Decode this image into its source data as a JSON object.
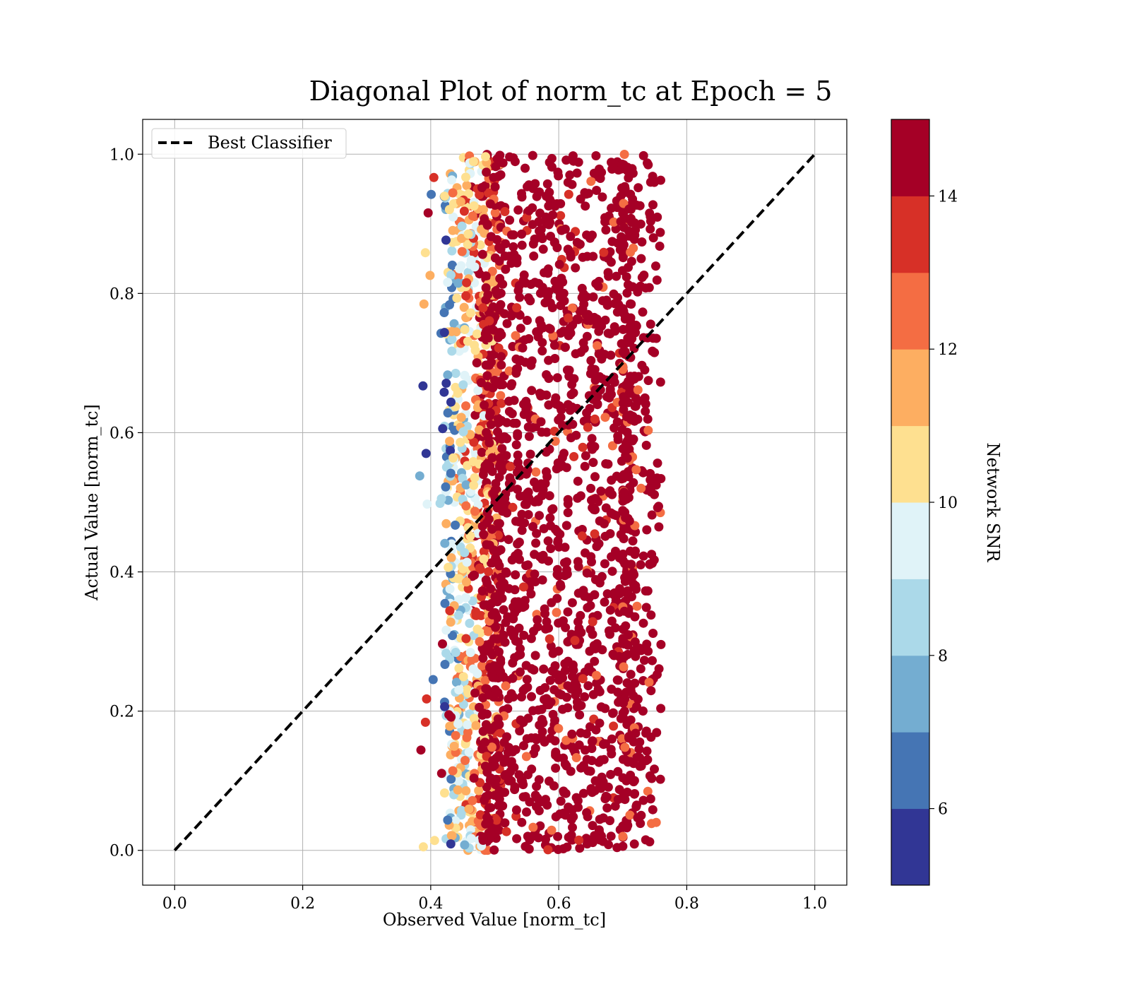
{
  "chart_data": {
    "type": "scatter",
    "title": "Diagonal Plot of norm_tc at Epoch = 5",
    "xlabel": "Observed Value [norm_tc]",
    "ylabel": "Actual Value [norm_tc]",
    "xlim": [
      -0.05,
      1.05
    ],
    "ylim": [
      -0.05,
      1.05
    ],
    "xticks": [
      "0.0",
      "0.2",
      "0.4",
      "0.6",
      "0.8",
      "1.0"
    ],
    "yticks": [
      "0.0",
      "0.2",
      "0.4",
      "0.6",
      "0.8",
      "1.0"
    ],
    "grid": true,
    "legend": {
      "placement": "top-left",
      "entries": [
        {
          "label": "Best Classifier",
          "style": "dashed",
          "color": "#000000"
        }
      ]
    },
    "reference_line": {
      "name": "Best Classifier",
      "x": [
        0.0,
        1.0
      ],
      "y": [
        0.0,
        1.0
      ]
    },
    "scatter_cloud": {
      "x_core_range": [
        0.5,
        0.7
      ],
      "x_total_range": [
        0.38,
        0.76
      ],
      "y_range": [
        0.0,
        1.0
      ],
      "dominant_snr": 14.5
    },
    "colorbar": {
      "label": "Network SNR",
      "range": [
        5,
        15
      ],
      "ticks": [
        "6",
        "8",
        "10",
        "12",
        "14"
      ],
      "levels": [
        {
          "from": 5,
          "to": 6,
          "color": "#313695"
        },
        {
          "from": 6,
          "to": 7,
          "color": "#4575b4"
        },
        {
          "from": 7,
          "to": 8,
          "color": "#74add1"
        },
        {
          "from": 8,
          "to": 9,
          "color": "#abd9e9"
        },
        {
          "from": 9,
          "to": 10,
          "color": "#e0f3f8"
        },
        {
          "from": 10,
          "to": 11,
          "color": "#fee090"
        },
        {
          "from": 11,
          "to": 12,
          "color": "#fdae61"
        },
        {
          "from": 12,
          "to": 13,
          "color": "#f46d43"
        },
        {
          "from": 13,
          "to": 14,
          "color": "#d73027"
        },
        {
          "from": 14,
          "to": 15,
          "color": "#a50026"
        }
      ]
    }
  }
}
